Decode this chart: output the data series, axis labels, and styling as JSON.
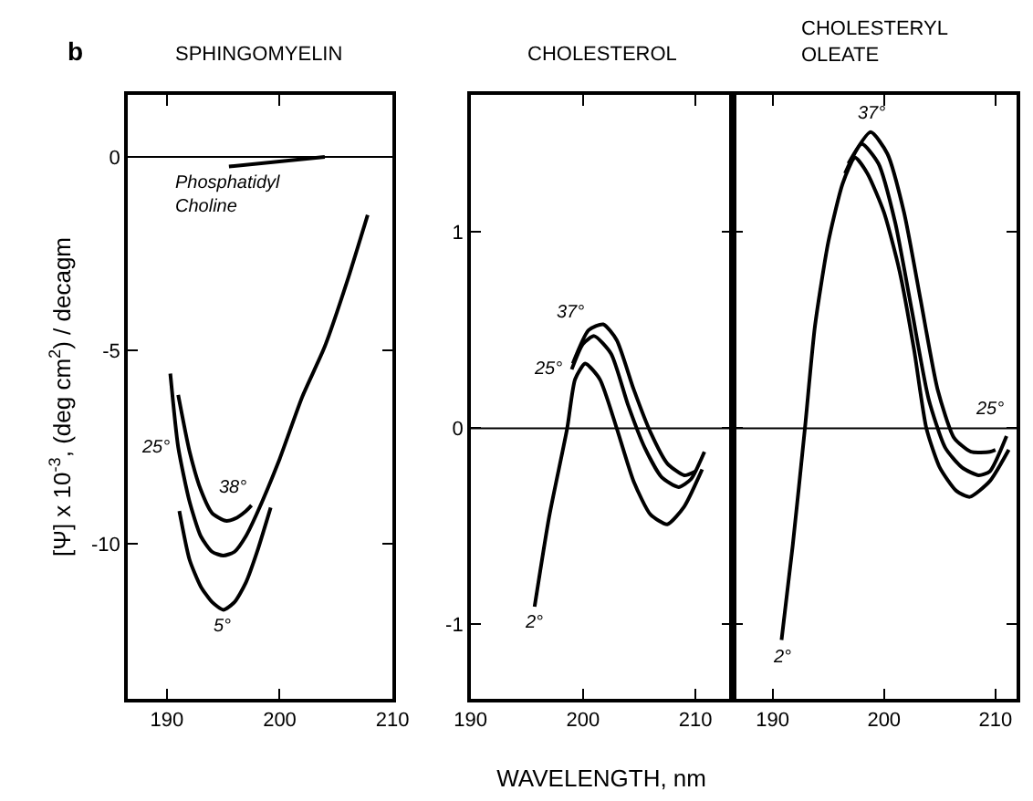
{
  "chart_data": [
    {
      "type": "line",
      "title": "SPHINGOMYELIN",
      "ylabel": "[Ψ] x 10$^{-3}$, (deg cm$^{2}$) / decagm",
      "xlim": [
        186.5,
        210
      ],
      "xticks": [
        190,
        200,
        210
      ],
      "ylim": [
        -14,
        1.6
      ],
      "yticks": [
        0,
        -5,
        -10
      ],
      "series": [
        {
          "name": "38°",
          "color": "#000000",
          "x": [
            191,
            192,
            193,
            194,
            195.2,
            196,
            197,
            197.5
          ],
          "values": [
            -6.15,
            -7.6,
            -8.6,
            -9.2,
            -9.4,
            -9.35,
            -9.15,
            -9.0
          ]
        },
        {
          "name": "25°",
          "color": "#000000",
          "x": [
            190.3,
            191,
            192,
            193,
            194,
            195,
            196,
            197,
            198,
            200,
            202,
            204,
            206,
            207.8
          ],
          "values": [
            -5.6,
            -7.5,
            -8.9,
            -9.8,
            -10.2,
            -10.3,
            -10.2,
            -9.8,
            -9.2,
            -7.8,
            -6.2,
            -4.9,
            -3.2,
            -1.5
          ]
        },
        {
          "name": "5°",
          "color": "#000000",
          "x": [
            191.1,
            192,
            193,
            194,
            195,
            196,
            197,
            198,
            199.2
          ],
          "values": [
            -9.15,
            -10.4,
            -11.1,
            -11.5,
            -11.7,
            -11.5,
            -11.0,
            -10.2,
            -9.06
          ]
        },
        {
          "name": "Phosphatidyl\nCholine",
          "color": "#000000",
          "x": [
            195.5,
            204
          ],
          "values": [
            -0.25,
            0
          ]
        }
      ],
      "ref_lines": [
        {
          "axis": "y",
          "value": 0,
          "color": "#000000"
        }
      ],
      "annotations": [
        "b"
      ]
    },
    {
      "type": "line",
      "title": "CHOLESTEROL",
      "xlabel": "WAVELENGTH, nm",
      "xlim": [
        190,
        213.3
      ],
      "xticks": [
        190,
        200,
        210
      ],
      "ylim": [
        -1.38,
        1.7
      ],
      "yticks": [
        1,
        0,
        -1
      ],
      "series": [
        {
          "name": "37°",
          "color": "#000000",
          "x": [
            199.1,
            200.5,
            201.8,
            203,
            204.5,
            206,
            207.5,
            209,
            210
          ],
          "values": [
            0.33,
            0.5,
            0.53,
            0.45,
            0.2,
            -0.02,
            -0.18,
            -0.24,
            -0.22
          ]
        },
        {
          "name": "25°",
          "color": "#000000",
          "x": [
            199,
            200,
            201,
            202.5,
            204,
            205.5,
            207,
            208.5,
            209.6,
            210.8
          ],
          "values": [
            0.3,
            0.43,
            0.47,
            0.38,
            0.12,
            -0.1,
            -0.25,
            -0.3,
            -0.26,
            -0.12
          ]
        },
        {
          "name": "2°",
          "color": "#000000",
          "x": [
            195.7,
            197,
            198.6,
            199.3,
            200.2,
            201.5,
            203,
            204.5,
            206,
            207.5,
            209,
            210.6
          ],
          "values": [
            -0.91,
            -0.45,
            0,
            0.25,
            0.33,
            0.25,
            0,
            -0.27,
            -0.44,
            -0.49,
            -0.4,
            -0.21
          ]
        }
      ],
      "ref_lines": [
        {
          "axis": "y",
          "value": 0,
          "color": "#000000"
        }
      ]
    },
    {
      "type": "line",
      "title": "CHOLESTERYL\nOLEATE",
      "xlim": [
        186.4,
        211.9
      ],
      "xticks": [
        190,
        200,
        210
      ],
      "ylim": [
        -1.38,
        1.7
      ],
      "yticks": [
        1,
        0,
        -1
      ],
      "tick_labels": "x",
      "series": [
        {
          "name": "37°",
          "color": "#000000",
          "x": [
            196.8,
            198.8,
            200.3,
            201.8,
            203.3,
            204.8,
            206.3,
            207.8,
            209.5,
            210
          ],
          "values": [
            1.35,
            1.51,
            1.4,
            1.1,
            0.65,
            0.2,
            -0.05,
            -0.12,
            -0.12,
            -0.11
          ]
        },
        {
          "name": "25°",
          "color": "#000000",
          "x": [
            196.5,
            198,
            199.5,
            201,
            202.5,
            204,
            205.5,
            207,
            208.5,
            209.5,
            211
          ],
          "values": [
            1.3,
            1.45,
            1.35,
            1.05,
            0.6,
            0.15,
            -0.1,
            -0.2,
            -0.24,
            -0.22,
            -0.04
          ]
        },
        {
          "name": "2°",
          "color": "#000000",
          "x": [
            190.8,
            191.8,
            192.9,
            193.8,
            195,
            196.3,
            197.4,
            198.5,
            200,
            201.4,
            202.7,
            203.8,
            205,
            206.5,
            207.7,
            209.5,
            211.2
          ],
          "values": [
            -1.08,
            -0.6,
            0,
            0.52,
            0.95,
            1.25,
            1.38,
            1.3,
            1.1,
            0.8,
            0.4,
            0,
            -0.2,
            -0.32,
            -0.35,
            -0.27,
            -0.11
          ]
        }
      ],
      "ref_lines": [
        {
          "axis": "y",
          "value": 0,
          "color": "#000000"
        }
      ]
    }
  ]
}
